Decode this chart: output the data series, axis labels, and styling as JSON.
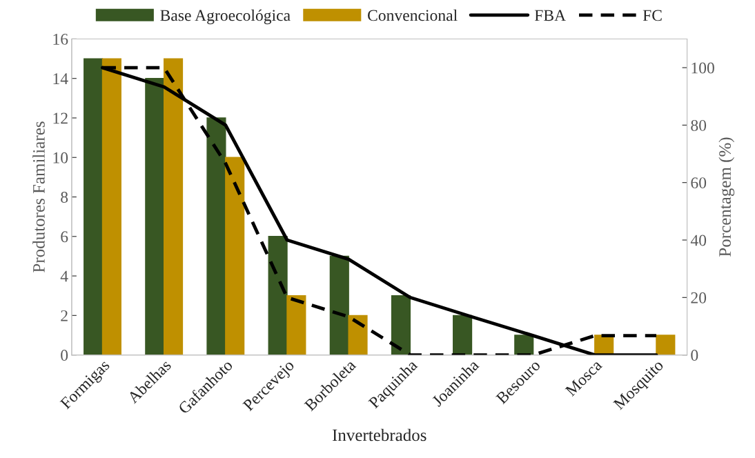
{
  "chart_data": {
    "type": "bar",
    "xlabel": "Invertebrados",
    "ylabel": "Produtores Familiares",
    "y2label": "Porcentagem (%)",
    "categories": [
      "Formigas",
      "Abelhas",
      "Gafanhoto",
      "Percevejo",
      "Borboleta",
      "Paquinha",
      "Joaninha",
      "Besouro",
      "Mosca",
      "Mosquito"
    ],
    "series": [
      {
        "name": "Base Agroecológica",
        "color": "#385723",
        "values": [
          15,
          14,
          12,
          6,
          5,
          3,
          2,
          1,
          0,
          0
        ]
      },
      {
        "name": "Convencional",
        "color": "#bf9000",
        "values": [
          15,
          15,
          10,
          3,
          2,
          0,
          0,
          0,
          1,
          1
        ]
      },
      {
        "name": "FBA",
        "type": "line",
        "axis": "y2",
        "color": "#000000",
        "line_style": "solid",
        "values": [
          100,
          93.3,
          80,
          40,
          33.3,
          20,
          13.3,
          6.7,
          0,
          0
        ]
      },
      {
        "name": "FC",
        "type": "line",
        "axis": "y2",
        "color": "#000000",
        "line_style": "dashed",
        "values": [
          100,
          100,
          66.7,
          20,
          13.3,
          0,
          0,
          0,
          6.7,
          6.7
        ]
      }
    ],
    "ylim": [
      0,
      16
    ],
    "yticks": [
      0,
      2,
      4,
      6,
      8,
      10,
      12,
      14,
      16
    ],
    "y2lim": [
      0,
      110
    ],
    "y2ticks": [
      0,
      20,
      40,
      60,
      80,
      100
    ],
    "grid": false,
    "legend": "top"
  }
}
